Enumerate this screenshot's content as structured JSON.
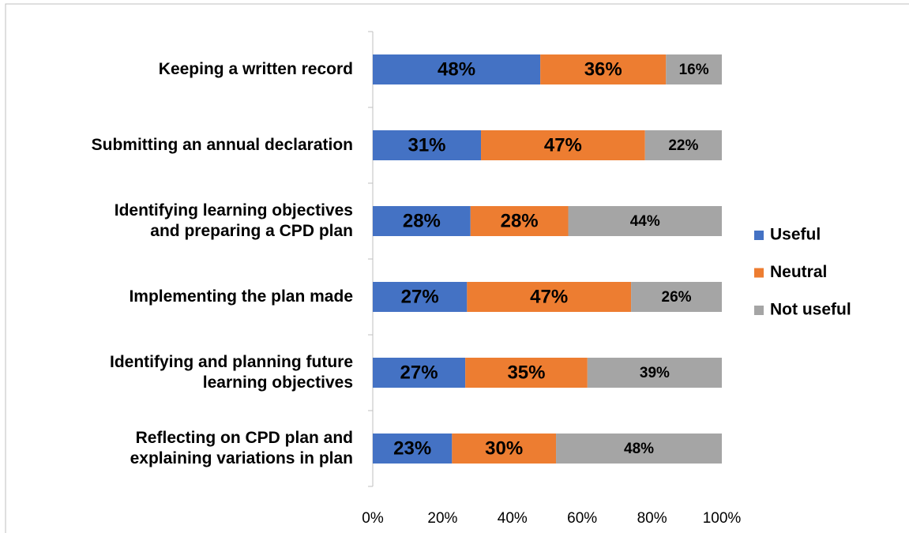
{
  "chart_data": {
    "type": "bar",
    "orientation": "horizontal",
    "stacked": true,
    "categories": [
      "Keeping a written record",
      "Submitting an annual declaration",
      "Identifying learning objectives\nand preparing a CPD plan",
      "Implementing the plan made",
      "Identifying and planning future\nlearning objectives",
      "Reflecting on CPD plan and\nexplaining variations in plan"
    ],
    "series": [
      {
        "name": "Useful",
        "color": "#4472c4",
        "values": [
          48,
          31,
          28,
          27,
          26.5,
          22.7
        ],
        "value_labels": [
          "48%",
          "31%",
          "28%",
          "27%",
          "27%",
          "23%"
        ]
      },
      {
        "name": "Neutral",
        "color": "#ed7d31",
        "values": [
          36,
          47,
          28,
          47,
          35,
          29.8
        ],
        "value_labels": [
          "36%",
          "47%",
          "28%",
          "47%",
          "35%",
          "30%"
        ]
      },
      {
        "name": "Not useful",
        "color": "#a5a5a5",
        "values": [
          16,
          22,
          44,
          26,
          38.5,
          47.5
        ],
        "value_labels": [
          "16%",
          "22%",
          "44%",
          "26%",
          "39%",
          "48%"
        ]
      }
    ],
    "xlim": [
      0,
      100
    ],
    "xticks": [
      {
        "value": 0,
        "label": "0%"
      },
      {
        "value": 20,
        "label": "20%"
      },
      {
        "value": 40,
        "label": "40%"
      },
      {
        "value": 60,
        "label": "60%"
      },
      {
        "value": 80,
        "label": "80%"
      },
      {
        "value": 100,
        "label": "100%"
      }
    ],
    "grid": false,
    "legend": "right"
  }
}
